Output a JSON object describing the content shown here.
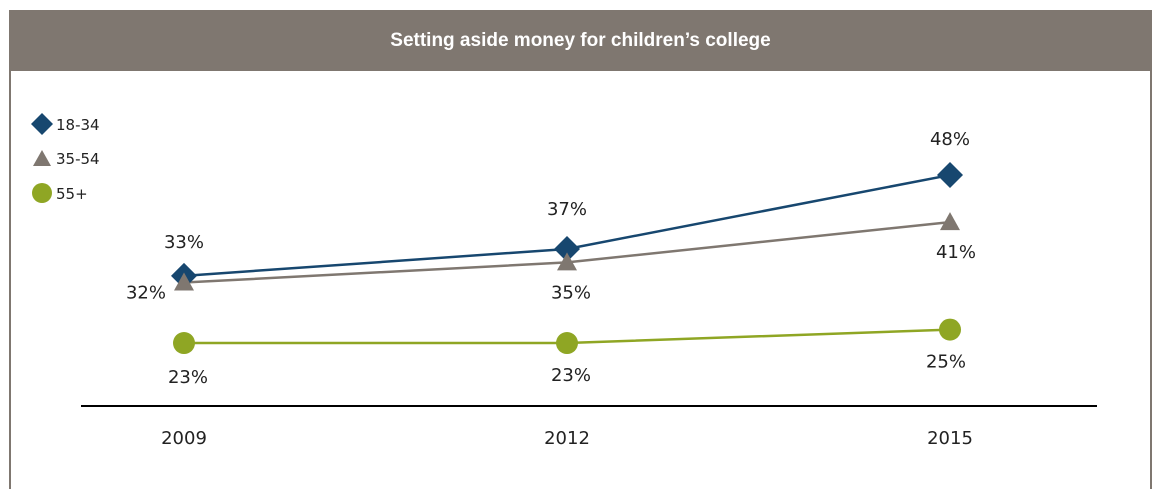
{
  "header": {
    "title": "Setting aside money for children’s college"
  },
  "colors": {
    "header_bg": "#7f7770",
    "series_18_34": "#17476f",
    "series_35_54": "#7f7770",
    "series_55_plus": "#8fa624"
  },
  "chart_data": {
    "type": "line",
    "title": "Setting aside money for children’s college",
    "x": [
      "2009",
      "2012",
      "2015"
    ],
    "ylim": [
      0,
      60
    ],
    "grid": false,
    "legend_position": "top-left",
    "series": [
      {
        "name": "18-34",
        "marker": "diamond",
        "values": [
          33,
          37,
          48
        ],
        "labels": [
          "33%",
          "37%",
          "48%"
        ]
      },
      {
        "name": "35-54",
        "marker": "triangle",
        "values": [
          32,
          35,
          41
        ],
        "labels": [
          "32%",
          "35%",
          "41%"
        ]
      },
      {
        "name": "55+",
        "marker": "circle",
        "values": [
          23,
          23,
          25
        ],
        "labels": [
          "23%",
          "23%",
          "25%"
        ]
      }
    ]
  }
}
